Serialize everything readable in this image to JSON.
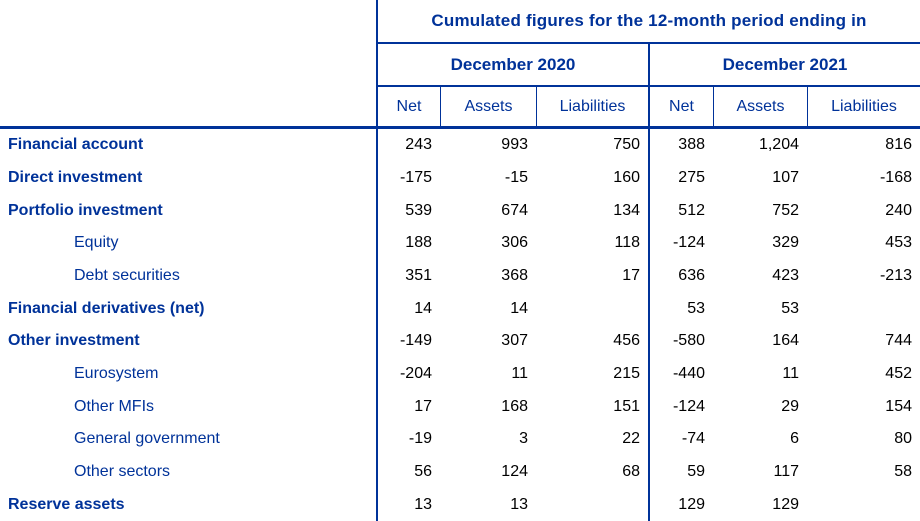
{
  "title": "Cumulated figures for the 12-month period ending in",
  "periods": {
    "p2020": "December 2020",
    "p2021": "December 2021"
  },
  "column_headers": {
    "net": "Net",
    "assets": "Assets",
    "liabilities": "Liabilities"
  },
  "colors": {
    "navy_text_and_borders": "#003299",
    "number_text": "#000000"
  },
  "rows": [
    {
      "label": "Financial account",
      "indent": false,
      "values": [
        "243",
        "993",
        "750",
        "388",
        "1,204",
        "816"
      ]
    },
    {
      "label": "Direct investment",
      "indent": false,
      "values": [
        "-175",
        "-15",
        "160",
        "275",
        "107",
        "-168"
      ]
    },
    {
      "label": "Portfolio investment",
      "indent": false,
      "values": [
        "539",
        "674",
        "134",
        "512",
        "752",
        "240"
      ]
    },
    {
      "label": "Equity",
      "indent": true,
      "values": [
        "188",
        "306",
        "118",
        "-124",
        "329",
        "453"
      ]
    },
    {
      "label": "Debt securities",
      "indent": true,
      "values": [
        "351",
        "368",
        "17",
        "636",
        "423",
        "-213"
      ]
    },
    {
      "label": "Financial derivatives (net)",
      "indent": false,
      "values": [
        "14",
        "14",
        "",
        "53",
        "53",
        ""
      ]
    },
    {
      "label": "Other investment",
      "indent": false,
      "values": [
        "-149",
        "307",
        "456",
        "-580",
        "164",
        "744"
      ]
    },
    {
      "label": "Eurosystem",
      "indent": true,
      "values": [
        "-204",
        "11",
        "215",
        "-440",
        "11",
        "452"
      ]
    },
    {
      "label": "Other MFIs",
      "indent": true,
      "values": [
        "17",
        "168",
        "151",
        "-124",
        "29",
        "154"
      ]
    },
    {
      "label": "General government",
      "indent": true,
      "values": [
        "-19",
        "3",
        "22",
        "-74",
        "6",
        "80"
      ]
    },
    {
      "label": "Other sectors",
      "indent": true,
      "values": [
        "56",
        "124",
        "68",
        "59",
        "117",
        "58"
      ]
    },
    {
      "label": "Reserve assets",
      "indent": false,
      "values": [
        "13",
        "13",
        "",
        "129",
        "129",
        ""
      ]
    }
  ]
}
